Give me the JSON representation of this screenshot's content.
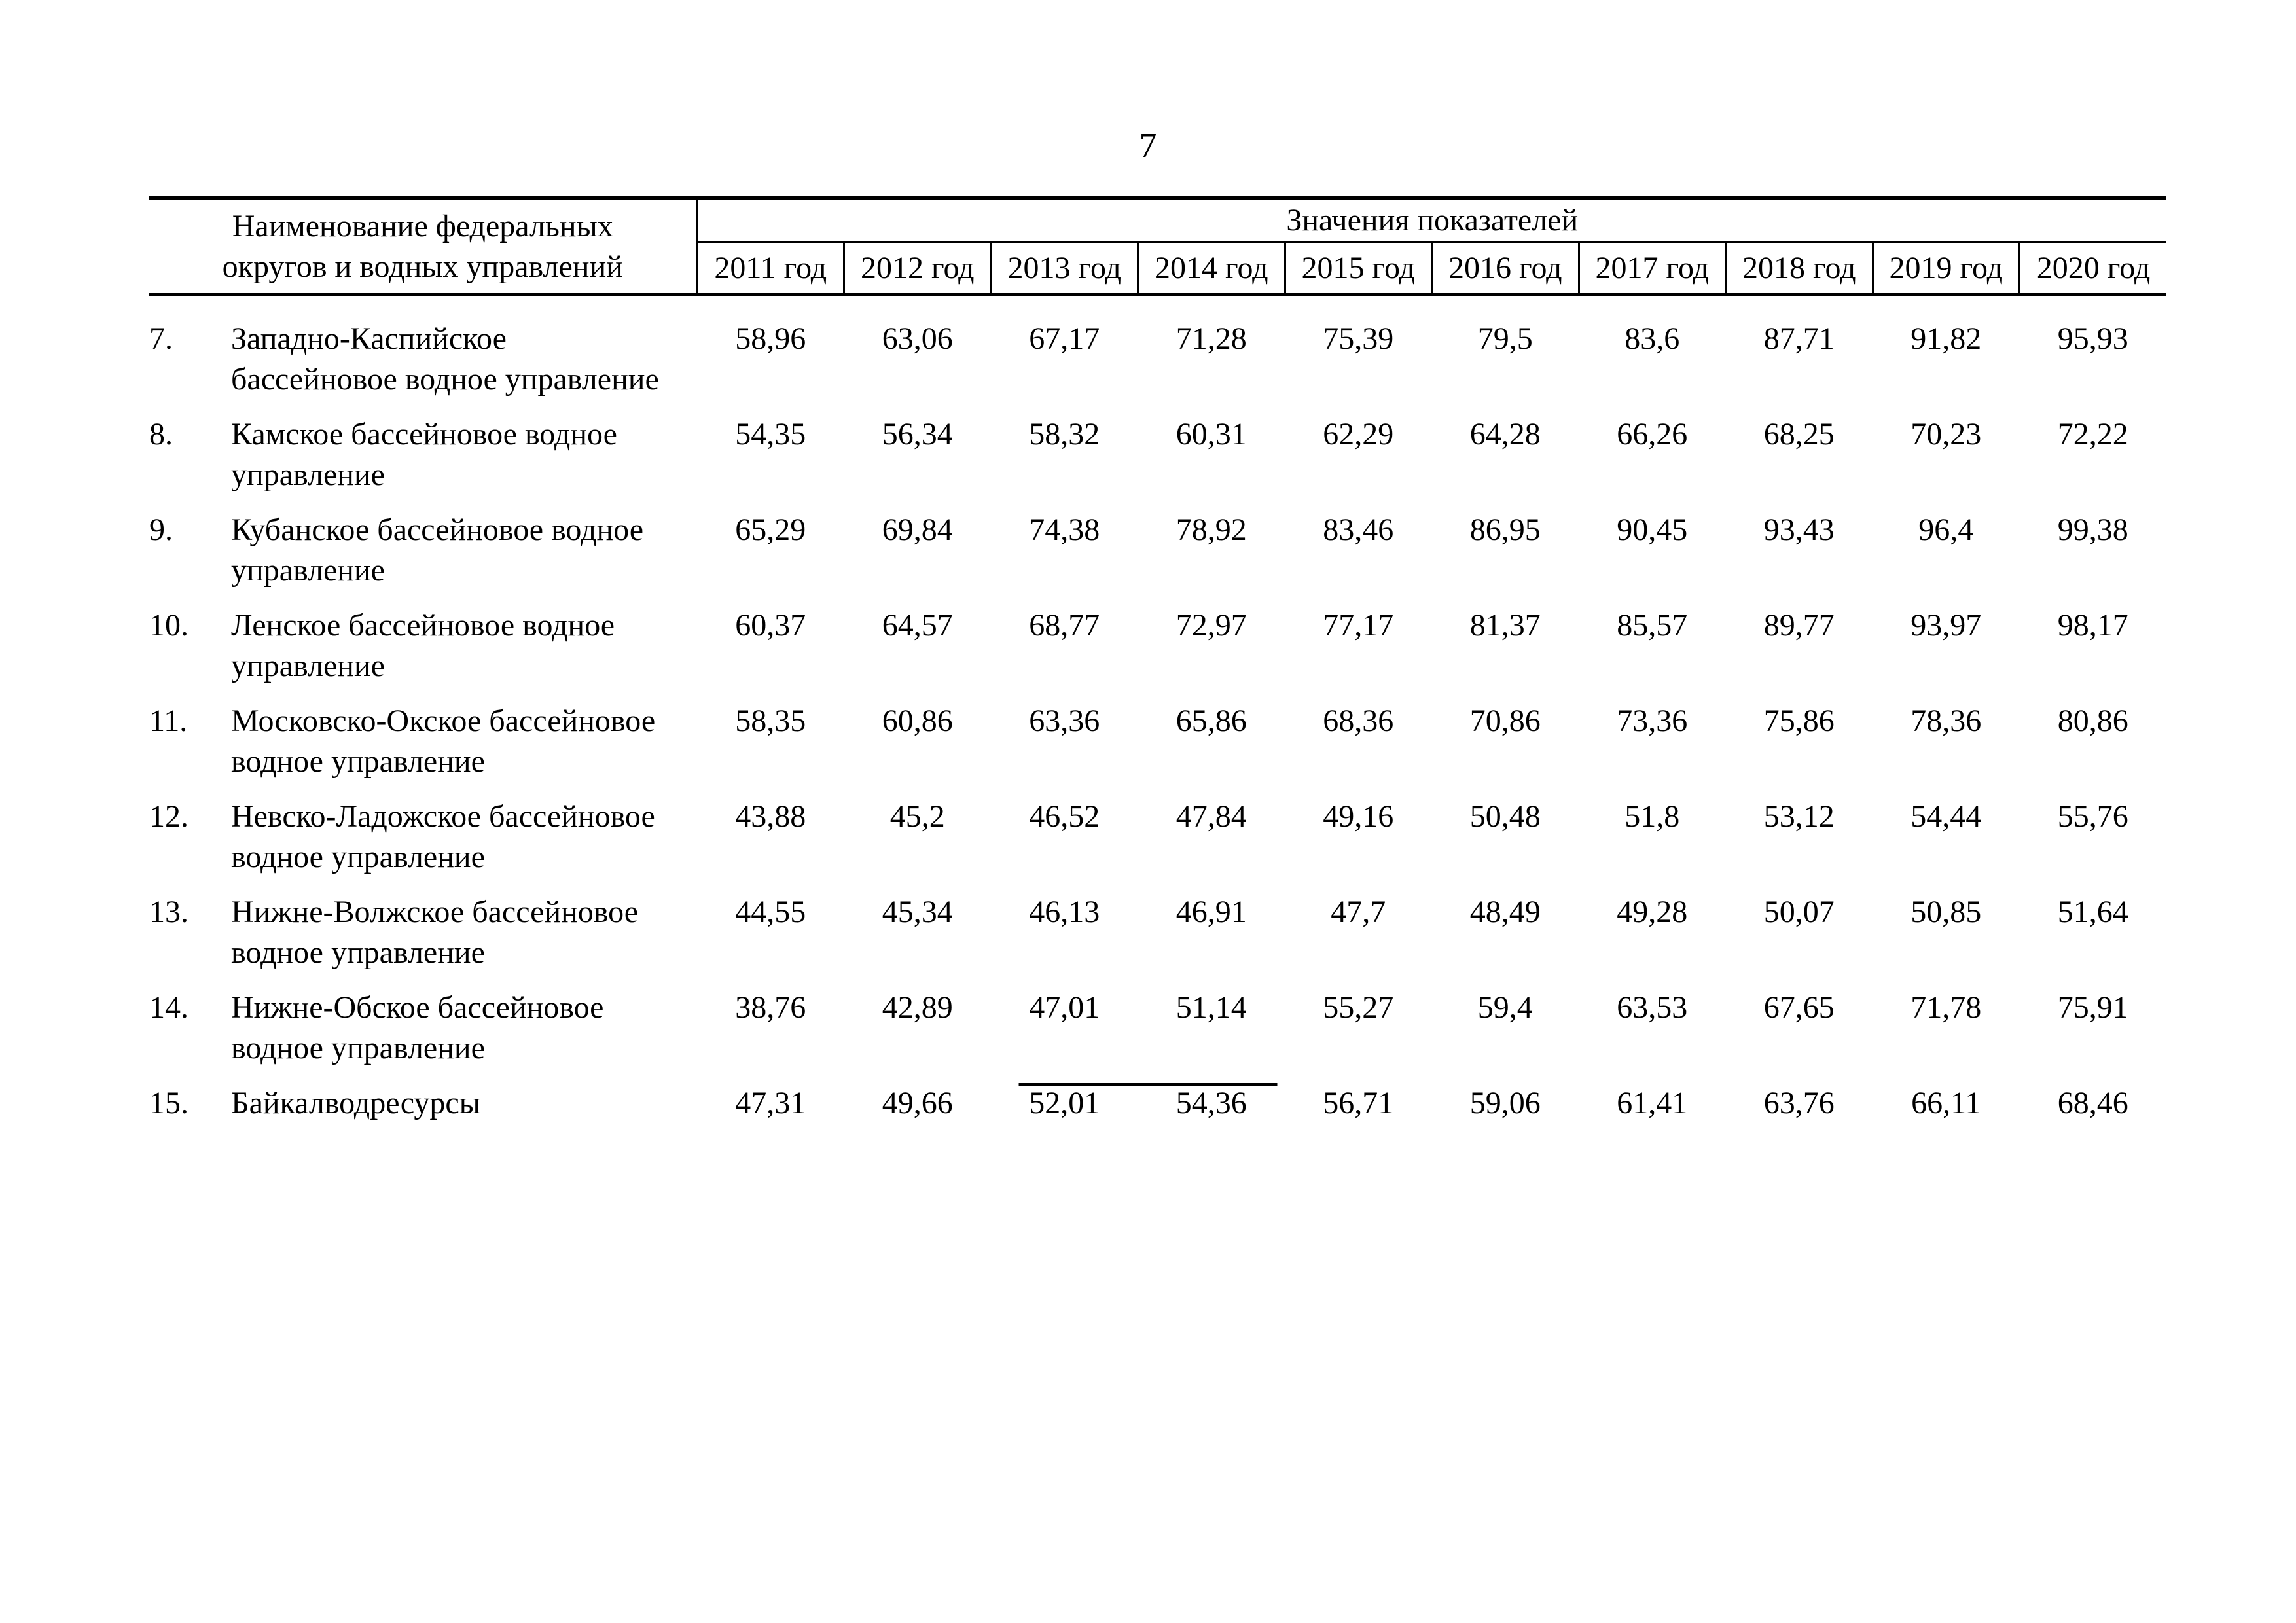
{
  "page": {
    "number": "7"
  },
  "table": {
    "name_header": "Наименование федеральных\nокругов и водных управлений",
    "values_header": "Значения показателей",
    "year_headers": [
      "2011 год",
      "2012 год",
      "2013 год",
      "2014 год",
      "2015 год",
      "2016 год",
      "2017 год",
      "2018 год",
      "2019 год",
      "2020 год"
    ],
    "rows": [
      {
        "num": "7.",
        "name": "Западно-Каспийское\nбассейновое водное управление",
        "values": [
          "58,96",
          "63,06",
          "67,17",
          "71,28",
          "75,39",
          "79,5",
          "83,6",
          "87,71",
          "91,82",
          "95,93"
        ]
      },
      {
        "num": "8.",
        "name": "Камское бассейновое водное\nуправление",
        "values": [
          "54,35",
          "56,34",
          "58,32",
          "60,31",
          "62,29",
          "64,28",
          "66,26",
          "68,25",
          "70,23",
          "72,22"
        ]
      },
      {
        "num": "9.",
        "name": "Кубанское бассейновое водное\nуправление",
        "values": [
          "65,29",
          "69,84",
          "74,38",
          "78,92",
          "83,46",
          "86,95",
          "90,45",
          "93,43",
          "96,4",
          "99,38"
        ]
      },
      {
        "num": "10.",
        "name": "Ленское бассейновое водное\nуправление",
        "values": [
          "60,37",
          "64,57",
          "68,77",
          "72,97",
          "77,17",
          "81,37",
          "85,57",
          "89,77",
          "93,97",
          "98,17"
        ]
      },
      {
        "num": "11.",
        "name": "Московско-Окское бассейновое\nводное управление",
        "values": [
          "58,35",
          "60,86",
          "63,36",
          "65,86",
          "68,36",
          "70,86",
          "73,36",
          "75,86",
          "78,36",
          "80,86"
        ]
      },
      {
        "num": "12.",
        "name": "Невско-Ладожское бассейновое\nводное управление",
        "values": [
          "43,88",
          "45,2",
          "46,52",
          "47,84",
          "49,16",
          "50,48",
          "51,8",
          "53,12",
          "54,44",
          "55,76"
        ]
      },
      {
        "num": "13.",
        "name": "Нижне-Волжское бассейновое\nводное управление",
        "values": [
          "44,55",
          "45,34",
          "46,13",
          "46,91",
          "47,7",
          "48,49",
          "49,28",
          "50,07",
          "50,85",
          "51,64"
        ]
      },
      {
        "num": "14.",
        "name": "Нижне-Обское бассейновое\nводное управление",
        "values": [
          "38,76",
          "42,89",
          "47,01",
          "51,14",
          "55,27",
          "59,4",
          "63,53",
          "67,65",
          "71,78",
          "75,91"
        ]
      },
      {
        "num": "15.",
        "name": "Байкалводресурсы",
        "values": [
          "47,31",
          "49,66",
          "52,01",
          "54,36",
          "56,71",
          "59,06",
          "61,41",
          "63,76",
          "66,11",
          "68,46"
        ]
      }
    ]
  }
}
